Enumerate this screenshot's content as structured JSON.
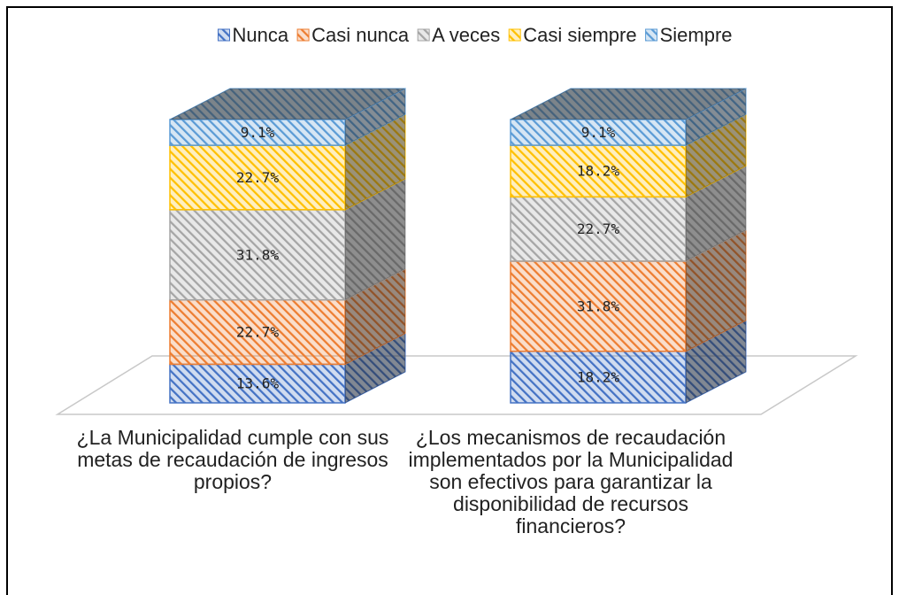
{
  "chart_data": {
    "type": "bar3d_stacked",
    "categories": [
      "¿La Municipalidad cumple con sus metas de recaudación de ingresos propios?",
      "¿Los mecanismos de recaudación implementados por la Municipalidad son efectivos para garantizar la disponibilidad de recursos financieros?"
    ],
    "series": [
      {
        "name": "Nunca",
        "color": "#4472c4",
        "values": [
          13.6,
          18.2
        ],
        "value_labels": [
          "13.6%",
          "18.2%"
        ]
      },
      {
        "name": "Casi nunca",
        "color": "#ed7d31",
        "values": [
          22.7,
          31.8
        ],
        "value_labels": [
          "22.7%",
          "31.8%"
        ]
      },
      {
        "name": "A veces",
        "color": "#a5a5a5",
        "values": [
          31.8,
          22.7
        ],
        "value_labels": [
          "31.8%",
          "22.7%"
        ]
      },
      {
        "name": "Casi siempre",
        "color": "#ffc000",
        "values": [
          22.7,
          18.2
        ],
        "value_labels": [
          "22.7%",
          "18.2%"
        ]
      },
      {
        "name": "Siempre",
        "color": "#5b9bd5",
        "values": [
          9.1,
          9.1
        ],
        "value_labels": [
          "9.1%",
          "9.1%"
        ]
      }
    ],
    "legend": "top"
  }
}
